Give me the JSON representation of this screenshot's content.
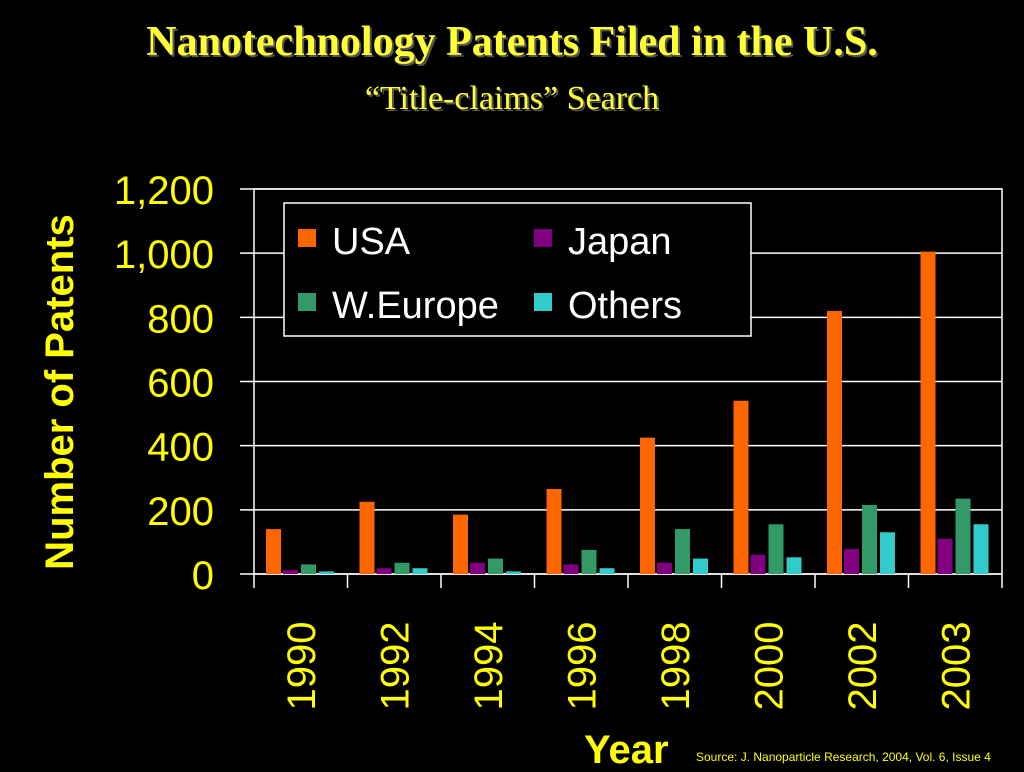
{
  "colors": {
    "background": "#000000",
    "text": "#ffff00",
    "axis": "#ffffff",
    "USA": "#ff6600",
    "Japan": "#800080",
    "W.Europe": "#339966",
    "Others": "#33cccc"
  },
  "source": "Source:  J. Nanoparticle Research, 2004, Vol. 6, Issue 4",
  "chart_data": {
    "type": "bar",
    "title": "Nanotechnology Patents Filed in the U.S.",
    "subtitle": "“Title-claims” Search",
    "xlabel": "Year",
    "ylabel": "Number of Patents",
    "ylim": [
      0,
      1200
    ],
    "yticks": [
      "0",
      "200",
      "400",
      "600",
      "800",
      "1,000",
      "1,200"
    ],
    "ytick_values": [
      0,
      200,
      400,
      600,
      800,
      1000,
      1200
    ],
    "grid": true,
    "legend_position": "top-left",
    "categories": [
      "1990",
      "1992",
      "1994",
      "1996",
      "1998",
      "2000",
      "2002",
      "2003"
    ],
    "series": [
      {
        "name": "USA",
        "values": [
          140,
          225,
          185,
          265,
          425,
          540,
          820,
          1005
        ]
      },
      {
        "name": "Japan",
        "values": [
          12,
          18,
          35,
          30,
          35,
          60,
          78,
          110
        ]
      },
      {
        "name": "W.Europe",
        "values": [
          30,
          35,
          48,
          75,
          140,
          155,
          215,
          235
        ]
      },
      {
        "name": "Others",
        "values": [
          8,
          18,
          8,
          18,
          48,
          52,
          130,
          155
        ]
      }
    ]
  }
}
